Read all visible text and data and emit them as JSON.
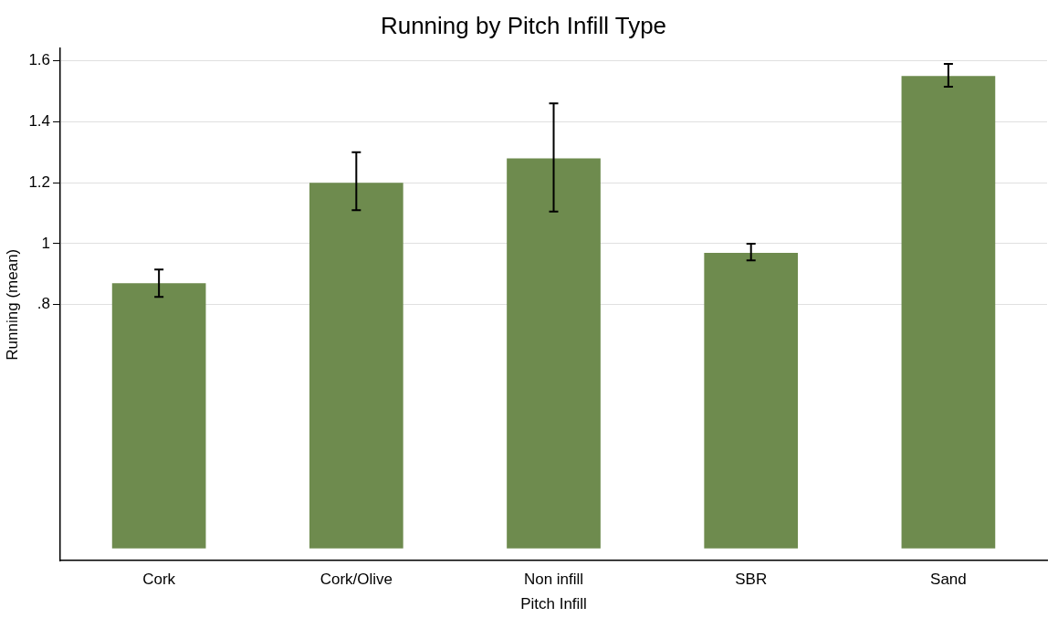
{
  "chart_data": {
    "type": "bar",
    "title": "Running by Pitch Infill Type",
    "xlabel": "Pitch Infill",
    "ylabel": "Running (mean)",
    "categories": [
      "Cork",
      "Cork/Olive",
      "Non infill",
      "SBR",
      "Sand"
    ],
    "values": [
      0.87,
      1.2,
      1.28,
      0.97,
      1.55
    ],
    "errors": [
      [
        0.825,
        0.915
      ],
      [
        1.11,
        1.3
      ],
      [
        1.105,
        1.46
      ],
      [
        0.945,
        1.0
      ],
      [
        1.515,
        1.59
      ]
    ],
    "color": "#6e8b4e",
    "ylim": [
      -0.04,
      1.64
    ],
    "yticks": [
      {
        "value": 0.8,
        "label": ".8"
      },
      {
        "value": 1,
        "label": "1"
      },
      {
        "value": 1.2,
        "label": "1.2"
      },
      {
        "value": 1.4,
        "label": "1.4"
      },
      {
        "value": 1.6,
        "label": "1.6"
      }
    ],
    "grid": "y",
    "legend": false
  }
}
